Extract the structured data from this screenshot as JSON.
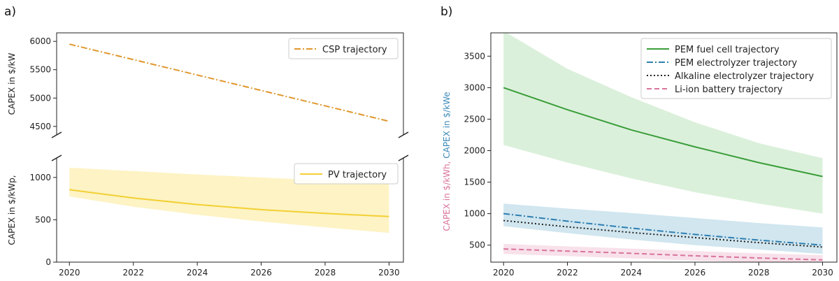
{
  "figure": {
    "panel_a_label": "a)",
    "panel_b_label": "b)"
  },
  "chart_data": [
    {
      "type": "line",
      "panel": "a) top",
      "ylabel": "CAPEX in $/kW",
      "ylim": [
        4350,
        6150
      ],
      "yticks": [
        4500,
        5000,
        5500,
        6000
      ],
      "x": [
        2020,
        2030
      ],
      "series": [
        {
          "name": "CSP trajectory",
          "values": [
            5950,
            4590
          ],
          "color": "#E0972E",
          "style": "dashdot"
        }
      ],
      "legend": "top-right",
      "grid": false
    },
    {
      "type": "line",
      "panel": "a) bottom",
      "ylabel": "CAPEX in $/kWp,",
      "ylim": [
        0,
        1230
      ],
      "yticks": [
        0,
        500,
        1000
      ],
      "xticks": [
        2020,
        2022,
        2024,
        2026,
        2028,
        2030
      ],
      "x": [
        2020,
        2022,
        2024,
        2026,
        2028,
        2030
      ],
      "series": [
        {
          "name": "PV trajectory",
          "values": [
            855,
            758,
            680,
            620,
            575,
            538
          ],
          "band_lower": [
            775,
            655,
            560,
            480,
            410,
            345
          ],
          "band_upper": [
            1115,
            1075,
            1035,
            1000,
            965,
            935
          ],
          "color": "#F2D033",
          "band_color": "#FCEFB0",
          "style": "solid"
        }
      ],
      "legend": "top-right",
      "grid": false
    },
    {
      "type": "line",
      "panel": "b)",
      "ylabel_parts": [
        {
          "text": "CAPEX in $/kWh,",
          "color": "#D9749C"
        },
        {
          "text": "CAPEX in $/kWe",
          "color": "#3C8AB8"
        }
      ],
      "ylim": [
        230,
        3870
      ],
      "yticks": [
        500,
        1000,
        1500,
        2000,
        2500,
        3000,
        3500
      ],
      "xticks": [
        2020,
        2022,
        2024,
        2026,
        2028,
        2030
      ],
      "x": [
        2020,
        2022,
        2024,
        2026,
        2028,
        2030
      ],
      "series": [
        {
          "name": "PEM fuel cell trajectory",
          "values": [
            3000,
            2650,
            2330,
            2060,
            1810,
            1590
          ],
          "band_lower": [
            2090,
            1810,
            1560,
            1340,
            1160,
            1000
          ],
          "band_upper": [
            3900,
            3300,
            2850,
            2450,
            2120,
            1880
          ],
          "color": "#3A9E3A",
          "band_color": "#CFEBCF",
          "style": "solid"
        },
        {
          "name": "PEM electrolyzer trajectory",
          "values": [
            1000,
            880,
            770,
            670,
            580,
            500
          ],
          "band_lower": [
            800,
            690,
            590,
            500,
            430,
            360
          ],
          "band_upper": [
            1160,
            1080,
            1010,
            930,
            850,
            780
          ],
          "color": "#2F7FB2",
          "band_color": "#C2DDEA",
          "style": "dashdot"
        },
        {
          "name": "Alkaline electrolyzer trajectory",
          "values": [
            890,
            790,
            700,
            620,
            540,
            470
          ],
          "color": "#222222",
          "style": "dotted"
        },
        {
          "name": "Li-ion battery trajectory",
          "values": [
            440,
            405,
            370,
            330,
            295,
            265
          ],
          "band_lower": [
            360,
            325,
            290,
            255,
            225,
            195
          ],
          "band_upper": [
            520,
            480,
            445,
            405,
            370,
            340
          ],
          "color": "#D9749C",
          "band_color": "#F6D7E3",
          "style": "dashed"
        }
      ],
      "legend": "top-right",
      "grid": false
    }
  ]
}
